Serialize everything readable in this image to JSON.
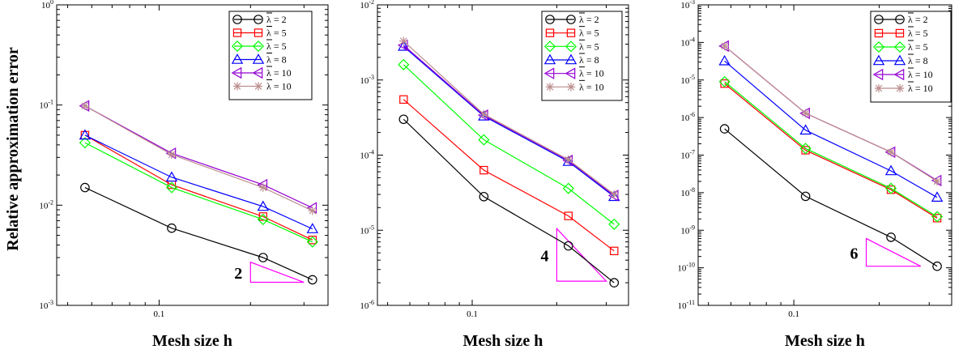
{
  "ylabel": "Relative approximation error",
  "chart_data": [
    {
      "type": "line",
      "xscale": "log",
      "yscale": "log",
      "xlim": [
        0.046,
        0.36
      ],
      "ylim_exp": [
        -3,
        0
      ],
      "x_tick_labels": [
        {
          "value": 0.1,
          "label": "0.1"
        }
      ],
      "xlabel": "Mesh size h",
      "x": [
        0.057,
        0.11,
        0.22,
        0.32
      ],
      "legend_position": "top-right",
      "series": [
        {
          "name": "λ = 2",
          "color": "#000000",
          "marker": "circle",
          "values": [
            0.015,
            0.0059,
            0.003,
            0.0018
          ]
        },
        {
          "name": "λ = 5",
          "color": "#ff0000",
          "marker": "square",
          "values": [
            0.05,
            0.016,
            0.0077,
            0.0045
          ]
        },
        {
          "name": "λ = 5",
          "color": "#00ff00",
          "marker": "diamond",
          "values": [
            0.042,
            0.015,
            0.0072,
            0.0043
          ]
        },
        {
          "name": "λ = 8",
          "color": "#0000ff",
          "marker": "triangle-up",
          "values": [
            0.05,
            0.019,
            0.0097,
            0.0058
          ]
        },
        {
          "name": "λ = 10",
          "color": "#9400d3",
          "marker": "triangle-left",
          "values": [
            0.098,
            0.033,
            0.016,
            0.0094
          ]
        },
        {
          "name": "λ = 10",
          "color": "#bc8f8f",
          "marker": "star",
          "values": [
            0.098,
            0.032,
            0.015,
            0.0088
          ]
        }
      ],
      "slope": {
        "label": "2",
        "x": [
          0.2,
          0.3
        ],
        "y": [
          0.0017,
          0.0027
        ]
      }
    },
    {
      "type": "line",
      "xscale": "log",
      "yscale": "log",
      "xlim": [
        0.046,
        0.36
      ],
      "ylim_exp": [
        -6,
        -2
      ],
      "x_tick_labels": [
        {
          "value": 0.1,
          "label": "0.1"
        }
      ],
      "xlabel": "Mesh size h",
      "x": [
        0.057,
        0.11,
        0.22,
        0.32
      ],
      "legend_position": "top-right",
      "series": [
        {
          "name": "λ = 2",
          "color": "#000000",
          "marker": "circle",
          "values": [
            0.0003,
            2.8e-05,
            6.2e-06,
            2e-06
          ]
        },
        {
          "name": "λ = 5",
          "color": "#ff0000",
          "marker": "square",
          "values": [
            0.00055,
            6.3e-05,
            1.55e-05,
            5.3e-06
          ]
        },
        {
          "name": "λ = 5",
          "color": "#00ff00",
          "marker": "diamond",
          "values": [
            0.0016,
            0.00016,
            3.6e-05,
            1.2e-05
          ]
        },
        {
          "name": "λ = 8",
          "color": "#0000ff",
          "marker": "triangle-up",
          "values": [
            0.0028,
            0.00033,
            8.2e-05,
            2.8e-05
          ]
        },
        {
          "name": "λ = 10",
          "color": "#9400d3",
          "marker": "triangle-left",
          "values": [
            0.0029,
            0.00034,
            8.5e-05,
            2.9e-05
          ]
        },
        {
          "name": "λ = 10",
          "color": "#bc8f8f",
          "marker": "star",
          "values": [
            0.0033,
            0.00035,
            8.7e-05,
            3e-05
          ]
        }
      ],
      "slope": {
        "label": "4",
        "x": [
          0.2,
          0.3
        ],
        "y": [
          2.1e-06,
          1.05e-05
        ]
      }
    },
    {
      "type": "line",
      "xscale": "log",
      "yscale": "log",
      "xlim": [
        0.046,
        0.36
      ],
      "ylim_exp": [
        -11,
        -3
      ],
      "x_tick_labels": [
        {
          "value": 0.1,
          "label": "0.1"
        }
      ],
      "xlabel": "Mesh size h",
      "x": [
        0.057,
        0.11,
        0.22,
        0.32
      ],
      "legend_position": "top-right",
      "series": [
        {
          "name": "λ = 2",
          "color": "#000000",
          "marker": "circle",
          "values": [
            5e-07,
            8e-09,
            6.5e-10,
            1.1e-10
          ]
        },
        {
          "name": "λ = 5",
          "color": "#ff0000",
          "marker": "square",
          "values": [
            8e-06,
            1.35e-07,
            1.2e-08,
            2.1e-09
          ]
        },
        {
          "name": "λ = 5",
          "color": "#00ff00",
          "marker": "diamond",
          "values": [
            9e-06,
            1.5e-07,
            1.3e-08,
            2.3e-09
          ]
        },
        {
          "name": "λ = 8",
          "color": "#0000ff",
          "marker": "triangle-up",
          "values": [
            3.2e-05,
            4.6e-07,
            3.8e-08,
            7.5e-09
          ]
        },
        {
          "name": "λ = 10",
          "color": "#9400d3",
          "marker": "triangle-left",
          "values": [
            8e-05,
            1.3e-06,
            1.2e-07,
            2.1e-08
          ]
        },
        {
          "name": "λ = 10",
          "color": "#bc8f8f",
          "marker": "star",
          "values": [
            8e-05,
            1.3e-06,
            1.2e-07,
            2e-08
          ]
        }
      ],
      "slope": {
        "label": "6",
        "x": [
          0.18,
          0.28
        ],
        "y": [
          1.1e-10,
          6e-10
        ]
      }
    }
  ]
}
